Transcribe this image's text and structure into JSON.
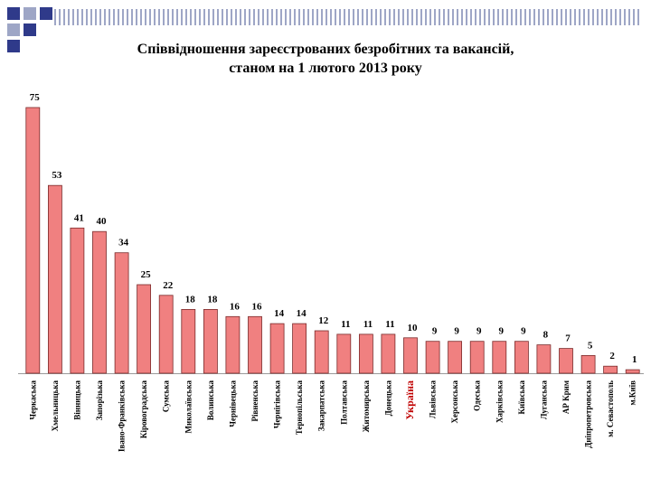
{
  "colors": {
    "bar_fill": "#f08080",
    "bar_stroke": "#7a2a2a",
    "highlight_label": "#c00000",
    "deco_dark": "#2f3a8a",
    "deco_light": "#9ea6c6"
  },
  "header": {
    "title_line1": "Співвідношення зареєстрованих безробітних та вакансій,",
    "title_line2": "станом на 1 лютого 2013 року"
  },
  "chart_data": {
    "type": "bar",
    "title": "Співвідношення зареєстрованих безробітних та вакансій, станом на 1 лютого 2013 року",
    "xlabel": "",
    "ylabel": "",
    "ylim": [
      0,
      75
    ],
    "grid": false,
    "legend": "none",
    "highlight_category": "Україна",
    "categories": [
      "Черкаська",
      "Хмельницька",
      "Вінницька",
      "Запорізька",
      "Івано-Франківська",
      "Кіровоградська",
      "Сумська",
      "Миколаївська",
      "Волинська",
      "Чернівецька",
      "Рівненська",
      "Чернігівська",
      "Тернопільська",
      "Закарпатська",
      "Полтавська",
      "Житомирська",
      "Донецька",
      "Україна",
      "Львівська",
      "Херсонська",
      "Одеська",
      "Харківська",
      "Київська",
      "Луганська",
      "АР Крим",
      "Дніпропетровська",
      "м. Севастополь",
      "м.Київ"
    ],
    "values": [
      75,
      53,
      41,
      40,
      34,
      25,
      22,
      18,
      18,
      16,
      16,
      14,
      14,
      12,
      11,
      11,
      11,
      10,
      9,
      9,
      9,
      9,
      9,
      8,
      7,
      5,
      2,
      1
    ]
  }
}
